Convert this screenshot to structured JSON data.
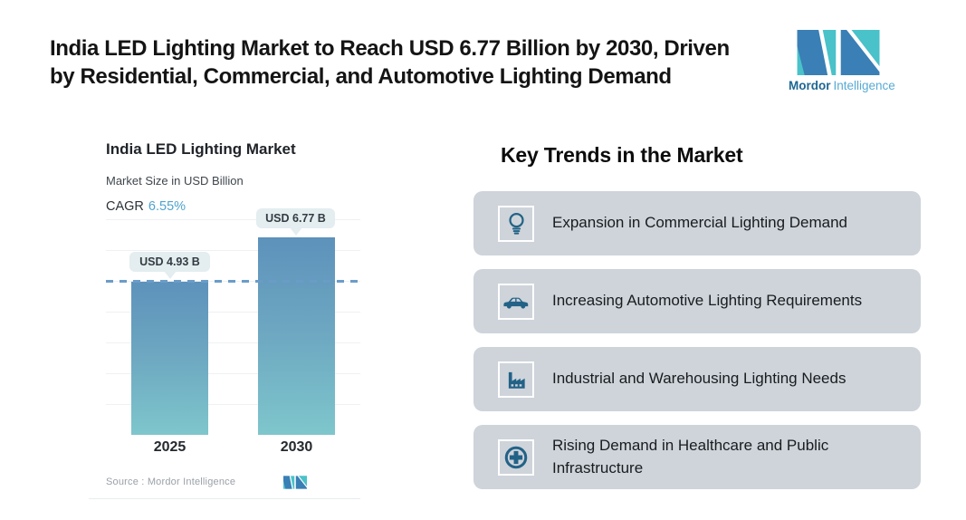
{
  "header": {
    "title_line1": "India LED Lighting Market to Reach USD 6.77 Billion by 2030, Driven",
    "title_line2": "by Residential, Commercial, and Automotive Lighting Demand",
    "brand_bold": "Mordor",
    "brand_light": "Intelligence"
  },
  "chart": {
    "title": "India LED Lighting Market",
    "subtitle": "Market Size in USD Billion",
    "cagr_label": "CAGR",
    "cagr_value": "6.55%",
    "source": "Source : Mordor Intelligence"
  },
  "chart_data": {
    "type": "bar",
    "title": "India LED Lighting Market",
    "ylabel": "Market Size in USD Billion",
    "categories": [
      "2025",
      "2030"
    ],
    "values": [
      4.93,
      6.77
    ],
    "value_labels": [
      "USD 4.93 B",
      "USD 6.77 B"
    ],
    "cagr_percent": 6.55,
    "reference_line_value": 4.93,
    "grid": true,
    "legend": false,
    "bar_gradient_top": "#5d92bb",
    "bar_gradient_bottom": "#7ec6cc"
  },
  "trends": {
    "heading": "Key Trends in the Market",
    "items": [
      {
        "icon": "lightbulb-icon",
        "text": "Expansion in Commercial Lighting Demand"
      },
      {
        "icon": "car-icon",
        "text": "Increasing Automotive Lighting Requirements"
      },
      {
        "icon": "factory-icon",
        "text": "Industrial and Warehousing Lighting Needs"
      },
      {
        "icon": "health-cross-icon",
        "text": "Rising Demand in Healthcare and Public Infrastructure"
      }
    ]
  },
  "colors": {
    "accent_blue": "#4fa3ce",
    "icon_teal_blue": "#236287",
    "card_bg": "#ced4da",
    "tooltip_bg": "#e4edf0",
    "dashed_line": "#6b9cc8",
    "logo_dark_blue": "#3a7fb5",
    "logo_teal": "#49c2c9"
  }
}
